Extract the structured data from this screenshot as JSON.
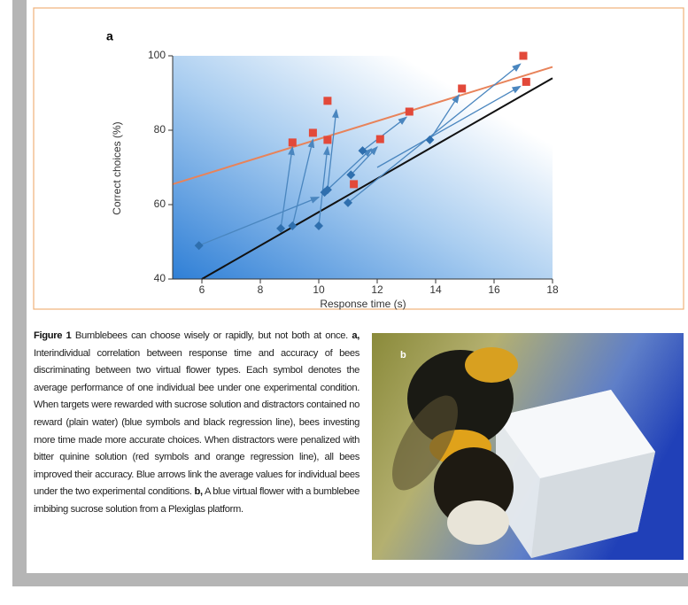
{
  "chart_data": {
    "type": "scatter",
    "panel_label": "a",
    "ylabel": "Correct choices (%)",
    "xlabel": "Response time (s)",
    "xlim": [
      5,
      18
    ],
    "xticks": [
      6,
      8,
      10,
      12,
      14,
      16,
      18
    ],
    "ylim": [
      40,
      100
    ],
    "yticks": [
      40,
      60,
      80,
      100
    ],
    "series": [
      {
        "color": "#2f6fae",
        "marker": "diamond",
        "x": [
          5.9,
          8.7,
          9.1,
          10.0,
          10.2,
          10.3,
          11.0,
          11.1,
          11.5,
          13.8
        ],
        "values": [
          49,
          53.6,
          54.3,
          54.3,
          63.3,
          64,
          60.5,
          68,
          74.5,
          77.4
        ]
      },
      {
        "color": "#e2493a",
        "marker": "square",
        "x": [
          9.1,
          9.8,
          10.3,
          10.3,
          11.2,
          12.1,
          13.1,
          14.9,
          17.0,
          17.1
        ],
        "values": [
          76.7,
          79.3,
          87.9,
          77.4,
          65.5,
          77.6,
          85,
          91.2,
          100,
          93
        ]
      }
    ],
    "fit_lines": [
      {
        "color": "#e8835a",
        "x": [
          5,
          18
        ],
        "values": [
          65.5,
          97
        ]
      },
      {
        "color": "#111111",
        "x": [
          6,
          18
        ],
        "values": [
          40,
          94
        ]
      }
    ],
    "arrows": {
      "color": "#4a86bf",
      "segments": [
        [
          5.9,
          49,
          10.0,
          62
        ],
        [
          8.7,
          53.6,
          9.1,
          75.5
        ],
        [
          9.1,
          54.3,
          9.8,
          77.5
        ],
        [
          10.0,
          54.3,
          10.3,
          75.5
        ],
        [
          10.3,
          64,
          10.6,
          85.5
        ],
        [
          10.2,
          63.3,
          11.8,
          75
        ],
        [
          11.1,
          68,
          12.0,
          75.5
        ],
        [
          11.5,
          74.5,
          13.0,
          83.5
        ],
        [
          13.8,
          77.4,
          14.8,
          89.5
        ],
        [
          11.0,
          60.5,
          16.9,
          97.8
        ],
        [
          12.0,
          70,
          16.9,
          91.8
        ]
      ]
    }
  },
  "caption": {
    "label": "Figure 1",
    "parts": [
      "Bumblebees can choose wisely or rapidly, but not both at once.",
      "a,",
      "Interindividual correlation between response time and accuracy of bees discriminating between two virtual flower types. Each symbol denotes the average performance of one individual bee under one experimental condition. When targets were rewarded with sucrose solution and distractors contained no reward (plain water) (blue symbols and black regression line), bees investing more time made more accurate choices. When distractors were penalized with bitter quinine solution (red symbols and orange regression line), all bees improved their accuracy. Blue arrows link the average values for individual bees under the two experimental conditions.",
      "b,",
      "A blue virtual flower with a bumblebee imbibing sucrose solution from a Plexiglas platform."
    ]
  },
  "photo": {
    "panel_label": "b"
  }
}
